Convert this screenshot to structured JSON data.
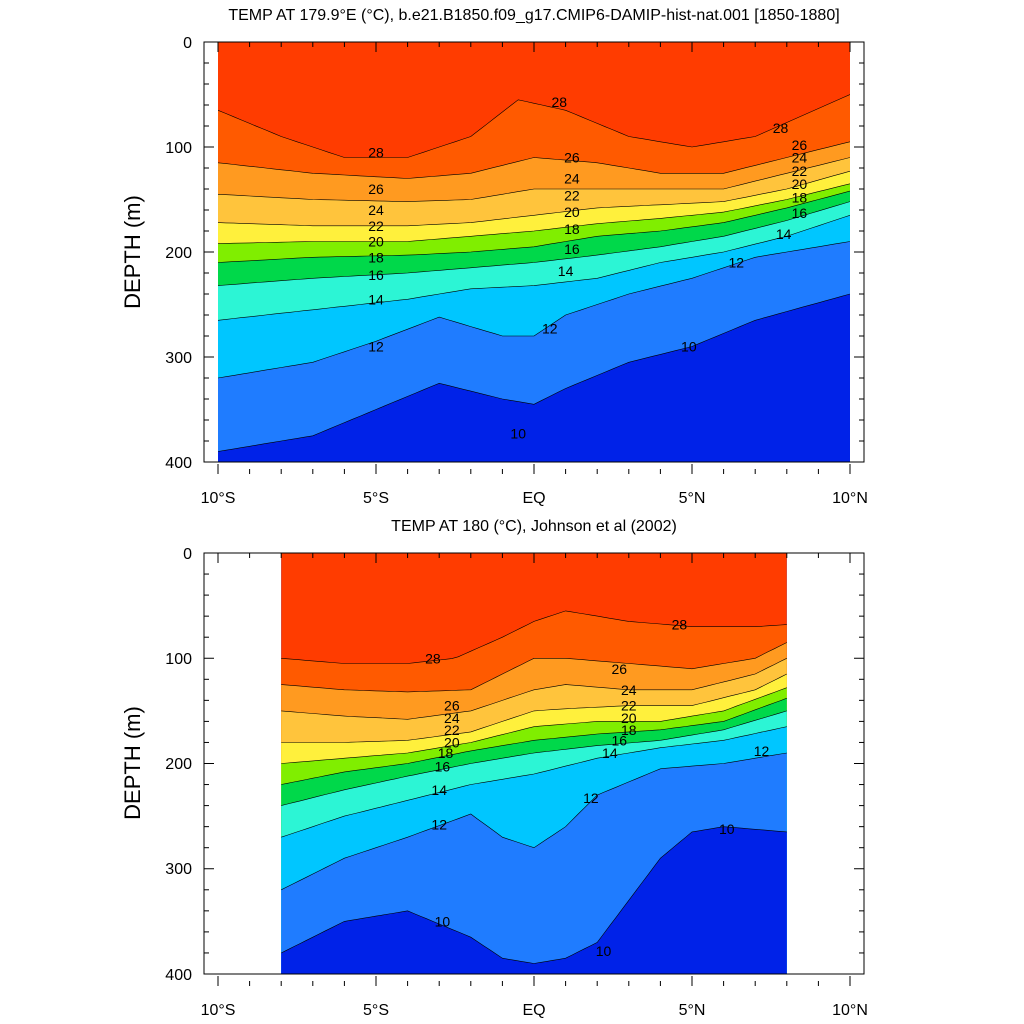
{
  "chart_data": [
    {
      "type": "contour",
      "title": "TEMP AT 179.9°E (°C), b.e21.B1850.f09_g17.CMIP6-DAMIP-hist-nat.001 [1850-1880]",
      "ylabel": "DEPTH (m)",
      "xlabel": "",
      "x_ticks": [
        "10°S",
        "5°S",
        "EQ",
        "5°N",
        "10°N"
      ],
      "y_ticks": [
        "0",
        "100",
        "200",
        "300",
        "400"
      ],
      "xlim": [
        -10,
        10
      ],
      "ylim": [
        0,
        400
      ],
      "data_xlim": [
        -10,
        10
      ],
      "contour_levels": [
        9,
        10,
        11,
        12,
        13,
        14,
        15,
        16,
        17,
        18,
        19,
        20,
        21,
        22,
        23,
        24,
        25,
        26,
        27,
        28,
        29
      ],
      "isotherms": [
        {
          "level": 28,
          "x": [
            -10,
            -8,
            -6,
            -4,
            -2,
            -0.5,
            1,
            3,
            5,
            7,
            8.5,
            10
          ],
          "y": [
            65,
            90,
            110,
            110,
            90,
            55,
            65,
            90,
            100,
            90,
            70,
            50
          ]
        },
        {
          "level": 26,
          "x": [
            -10,
            -7,
            -4,
            -2,
            0,
            2,
            4,
            6,
            8,
            10
          ],
          "y": [
            115,
            125,
            130,
            125,
            110,
            115,
            125,
            125,
            110,
            95
          ]
        },
        {
          "level": 24,
          "x": [
            -10,
            -7,
            -4,
            -2,
            0,
            2,
            4,
            6,
            8,
            10
          ],
          "y": [
            145,
            150,
            152,
            150,
            140,
            140,
            140,
            140,
            125,
            110
          ]
        },
        {
          "level": 22,
          "x": [
            -10,
            -7,
            -4,
            -2,
            0,
            2,
            4,
            6,
            8,
            10
          ],
          "y": [
            172,
            175,
            175,
            172,
            165,
            158,
            155,
            152,
            140,
            123
          ]
        },
        {
          "level": 20,
          "x": [
            -10,
            -7,
            -4,
            -2,
            0,
            2,
            4,
            6,
            8,
            10
          ],
          "y": [
            192,
            190,
            190,
            185,
            180,
            173,
            168,
            162,
            150,
            135
          ]
        },
        {
          "level": 18,
          "x": [
            -10,
            -7,
            -4,
            -2,
            0,
            2,
            4,
            6,
            8,
            10
          ],
          "y": [
            210,
            205,
            203,
            200,
            195,
            185,
            180,
            172,
            158,
            142
          ]
        },
        {
          "level": 16,
          "x": [
            -10,
            -7,
            -4,
            -2,
            0,
            2,
            4,
            6,
            8,
            10
          ],
          "y": [
            232,
            225,
            220,
            215,
            210,
            203,
            195,
            185,
            170,
            152
          ]
        },
        {
          "level": 14,
          "x": [
            -10,
            -7,
            -4,
            -2,
            0,
            2,
            4,
            6,
            8,
            10
          ],
          "y": [
            265,
            255,
            245,
            235,
            232,
            225,
            210,
            200,
            185,
            165
          ]
        },
        {
          "level": 12,
          "x": [
            -10,
            -7,
            -5,
            -3,
            -1,
            0,
            1,
            3,
            5,
            7,
            10
          ],
          "y": [
            320,
            305,
            285,
            262,
            280,
            280,
            260,
            240,
            225,
            205,
            190
          ]
        },
        {
          "level": 10,
          "x": [
            -10,
            -7,
            -5,
            -3,
            -1,
            0,
            1,
            3,
            5,
            7,
            10
          ],
          "y": [
            390,
            375,
            350,
            325,
            340,
            345,
            330,
            305,
            290,
            265,
            240
          ]
        }
      ],
      "labels": [
        {
          "text": "28",
          "x": 0.8,
          "y": 57
        },
        {
          "text": "28",
          "x": 7.8,
          "y": 82
        },
        {
          "text": "28",
          "x": -5,
          "y": 105
        },
        {
          "text": "26",
          "x": 1.2,
          "y": 110
        },
        {
          "text": "26",
          "x": 8.4,
          "y": 98
        },
        {
          "text": "26",
          "x": -5,
          "y": 140
        },
        {
          "text": "24",
          "x": 1.2,
          "y": 130
        },
        {
          "text": "24",
          "x": 8.4,
          "y": 110
        },
        {
          "text": "24",
          "x": -5,
          "y": 160
        },
        {
          "text": "22",
          "x": 1.2,
          "y": 146
        },
        {
          "text": "22",
          "x": 8.4,
          "y": 123
        },
        {
          "text": "22",
          "x": -5,
          "y": 175
        },
        {
          "text": "20",
          "x": 1.2,
          "y": 162
        },
        {
          "text": "20",
          "x": 8.4,
          "y": 135
        },
        {
          "text": "20",
          "x": -5,
          "y": 190
        },
        {
          "text": "18",
          "x": 1.2,
          "y": 178
        },
        {
          "text": "18",
          "x": 8.4,
          "y": 148
        },
        {
          "text": "18",
          "x": -5,
          "y": 205
        },
        {
          "text": "16",
          "x": 1.2,
          "y": 197
        },
        {
          "text": "16",
          "x": 8.4,
          "y": 163
        },
        {
          "text": "16",
          "x": -5,
          "y": 222
        },
        {
          "text": "14",
          "x": 1,
          "y": 218
        },
        {
          "text": "14",
          "x": 7.9,
          "y": 183
        },
        {
          "text": "14",
          "x": -5,
          "y": 245
        },
        {
          "text": "12",
          "x": 0.5,
          "y": 273
        },
        {
          "text": "12",
          "x": 6.4,
          "y": 210
        },
        {
          "text": "12",
          "x": -5,
          "y": 290
        },
        {
          "text": "10",
          "x": -0.5,
          "y": 373
        },
        {
          "text": "10",
          "x": 4.9,
          "y": 290
        }
      ]
    },
    {
      "type": "contour",
      "title": "TEMP AT 180 (°C), Johnson et al (2002)",
      "ylabel": "DEPTH (m)",
      "xlabel": "",
      "x_ticks": [
        "10°S",
        "5°S",
        "EQ",
        "5°N",
        "10°N"
      ],
      "y_ticks": [
        "0",
        "100",
        "200",
        "300",
        "400"
      ],
      "xlim": [
        -10,
        10
      ],
      "ylim": [
        0,
        400
      ],
      "data_xlim": [
        -8,
        8
      ],
      "contour_levels": [
        9,
        10,
        11,
        12,
        13,
        14,
        15,
        16,
        17,
        18,
        19,
        20,
        21,
        22,
        23,
        24,
        25,
        26,
        27,
        28,
        29
      ],
      "isotherms": [
        {
          "level": 28,
          "x": [
            -8,
            -6,
            -4,
            -2.5,
            -1,
            0,
            1,
            3,
            5,
            7,
            8
          ],
          "y": [
            100,
            105,
            105,
            100,
            80,
            65,
            55,
            65,
            70,
            70,
            68
          ]
        },
        {
          "level": 26,
          "x": [
            -8,
            -6,
            -4,
            -2,
            0,
            1,
            3,
            5,
            7,
            8
          ],
          "y": [
            125,
            130,
            132,
            130,
            100,
            100,
            105,
            110,
            100,
            85
          ]
        },
        {
          "level": 24,
          "x": [
            -8,
            -6,
            -4,
            -2,
            0,
            1,
            3,
            5,
            7,
            8
          ],
          "y": [
            150,
            155,
            158,
            150,
            130,
            125,
            130,
            130,
            115,
            100
          ]
        },
        {
          "level": 22,
          "x": [
            -8,
            -6,
            -4,
            -2,
            0,
            1,
            3,
            5,
            7,
            8
          ],
          "y": [
            180,
            180,
            178,
            170,
            150,
            148,
            145,
            145,
            130,
            115
          ]
        },
        {
          "level": 20,
          "x": [
            -8,
            -6,
            -4,
            -2,
            0,
            2,
            4,
            6,
            8
          ],
          "y": [
            200,
            195,
            190,
            180,
            165,
            160,
            160,
            150,
            128
          ]
        },
        {
          "level": 18,
          "x": [
            -8,
            -6,
            -4,
            -2,
            0,
            2,
            4,
            6,
            8
          ],
          "y": [
            220,
            208,
            200,
            188,
            178,
            172,
            168,
            160,
            138
          ]
        },
        {
          "level": 16,
          "x": [
            -8,
            -6,
            -4,
            -2,
            0,
            2,
            4,
            6,
            8
          ],
          "y": [
            240,
            225,
            212,
            200,
            190,
            183,
            178,
            168,
            150
          ]
        },
        {
          "level": 14,
          "x": [
            -8,
            -6,
            -4,
            -2,
            0,
            2,
            4,
            6,
            8
          ],
          "y": [
            270,
            250,
            235,
            220,
            210,
            195,
            185,
            178,
            165
          ]
        },
        {
          "level": 12,
          "x": [
            -8,
            -6,
            -4,
            -2,
            -1,
            0,
            1,
            2,
            4,
            6,
            8
          ],
          "y": [
            320,
            290,
            270,
            248,
            270,
            280,
            260,
            230,
            205,
            200,
            190
          ]
        },
        {
          "level": 10,
          "x": [
            -8,
            -6,
            -4,
            -2,
            -1,
            0,
            1,
            2,
            3,
            4,
            5,
            6,
            8
          ],
          "y": [
            380,
            350,
            340,
            365,
            385,
            390,
            385,
            370,
            330,
            290,
            265,
            260,
            265
          ]
        }
      ],
      "labels": [
        {
          "text": "28",
          "x": -3.2,
          "y": 100
        },
        {
          "text": "28",
          "x": 4.6,
          "y": 68
        },
        {
          "text": "26",
          "x": -2.6,
          "y": 145
        },
        {
          "text": "26",
          "x": 2.7,
          "y": 110
        },
        {
          "text": "24",
          "x": -2.6,
          "y": 157
        },
        {
          "text": "24",
          "x": 3,
          "y": 130
        },
        {
          "text": "22",
          "x": -2.6,
          "y": 168
        },
        {
          "text": "22",
          "x": 3,
          "y": 145
        },
        {
          "text": "20",
          "x": -2.6,
          "y": 180
        },
        {
          "text": "20",
          "x": 3,
          "y": 157
        },
        {
          "text": "18",
          "x": -2.8,
          "y": 190
        },
        {
          "text": "18",
          "x": 3,
          "y": 168
        },
        {
          "text": "16",
          "x": -2.9,
          "y": 203
        },
        {
          "text": "16",
          "x": 2.7,
          "y": 178
        },
        {
          "text": "14",
          "x": -3,
          "y": 225
        },
        {
          "text": "14",
          "x": 2.4,
          "y": 190
        },
        {
          "text": "12",
          "x": -3,
          "y": 258
        },
        {
          "text": "12",
          "x": 1.8,
          "y": 233
        },
        {
          "text": "12",
          "x": 7.2,
          "y": 188
        },
        {
          "text": "10",
          "x": -2.9,
          "y": 350
        },
        {
          "text": "10",
          "x": 2.2,
          "y": 378
        },
        {
          "text": "10",
          "x": 6.1,
          "y": 262
        }
      ]
    }
  ]
}
